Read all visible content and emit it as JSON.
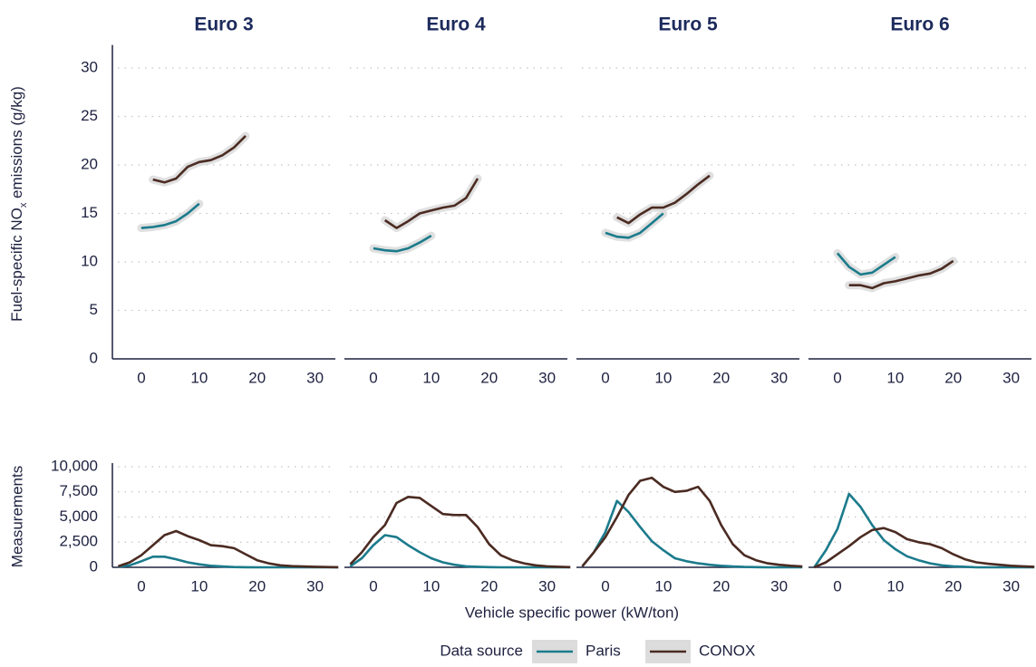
{
  "figure": {
    "ylabel_top": [
      "Fuel-specific NO",
      "x",
      " emissions (g/kg)"
    ],
    "ylabel_bottom": "Measurements",
    "xlabel": "Vehicle specific power (kW/ton)",
    "legend_title": "Data source"
  },
  "chart_data": [
    {
      "type": "line",
      "row": "top",
      "title": "Euro 3",
      "x": [
        0,
        2,
        4,
        6,
        8,
        10,
        12,
        14,
        16,
        18,
        20
      ],
      "xlim": [
        -5,
        33.5
      ],
      "xticks": [
        0,
        10,
        20,
        30
      ],
      "ylim": [
        0,
        32
      ],
      "yticks": [
        0,
        5,
        10,
        15,
        20,
        25,
        30
      ],
      "grid": true,
      "series": [
        {
          "name": "Paris",
          "color": "#1b7b8c",
          "values": [
            13.5,
            13.6,
            13.8,
            14.2,
            15.0,
            16.0,
            null,
            null,
            null,
            null,
            null
          ]
        },
        {
          "name": "CONOX",
          "color": "#4b2b22",
          "values": [
            null,
            18.5,
            18.2,
            18.6,
            19.8,
            20.3,
            20.5,
            21.0,
            21.8,
            23.0,
            null
          ]
        }
      ]
    },
    {
      "type": "line",
      "row": "top",
      "title": "Euro 4",
      "x": [
        0,
        2,
        4,
        6,
        8,
        10,
        12,
        14,
        16,
        18,
        20
      ],
      "xlim": [
        -5,
        33.5
      ],
      "xticks": [
        0,
        10,
        20,
        30
      ],
      "ylim": [
        0,
        32
      ],
      "yticks": [
        0,
        5,
        10,
        15,
        20,
        25,
        30
      ],
      "grid": true,
      "series": [
        {
          "name": "Paris",
          "color": "#1b7b8c",
          "values": [
            11.4,
            11.2,
            11.1,
            11.4,
            12.0,
            12.7,
            null,
            null,
            null,
            null,
            null
          ]
        },
        {
          "name": "CONOX",
          "color": "#4b2b22",
          "values": [
            null,
            14.3,
            13.5,
            14.2,
            15.0,
            15.3,
            15.6,
            15.8,
            16.6,
            18.6,
            null
          ]
        }
      ]
    },
    {
      "type": "line",
      "row": "top",
      "title": "Euro 5",
      "x": [
        0,
        2,
        4,
        6,
        8,
        10,
        12,
        14,
        16,
        18,
        20
      ],
      "xlim": [
        -5,
        33.5
      ],
      "xticks": [
        0,
        10,
        20,
        30
      ],
      "ylim": [
        0,
        32
      ],
      "yticks": [
        0,
        5,
        10,
        15,
        20,
        25,
        30
      ],
      "grid": true,
      "series": [
        {
          "name": "Paris",
          "color": "#1b7b8c",
          "values": [
            13.0,
            12.6,
            12.5,
            13.0,
            14.0,
            15.0,
            null,
            null,
            null,
            null,
            null
          ]
        },
        {
          "name": "CONOX",
          "color": "#4b2b22",
          "values": [
            null,
            14.6,
            14.0,
            14.9,
            15.6,
            15.6,
            16.1,
            17.0,
            18.0,
            18.9,
            null
          ]
        }
      ]
    },
    {
      "type": "line",
      "row": "top",
      "title": "Euro 6",
      "x": [
        0,
        2,
        4,
        6,
        8,
        10,
        12,
        14,
        16,
        18,
        20
      ],
      "xlim": [
        -5,
        33.5
      ],
      "xticks": [
        0,
        10,
        20,
        30
      ],
      "ylim": [
        0,
        32
      ],
      "yticks": [
        0,
        5,
        10,
        15,
        20,
        25,
        30
      ],
      "grid": true,
      "series": [
        {
          "name": "Paris",
          "color": "#1b7b8c",
          "values": [
            10.9,
            9.5,
            8.7,
            8.9,
            9.7,
            10.5,
            null,
            null,
            null,
            null,
            null
          ]
        },
        {
          "name": "CONOX",
          "color": "#4b2b22",
          "values": [
            null,
            7.6,
            7.6,
            7.3,
            7.8,
            8.0,
            8.3,
            8.6,
            8.8,
            9.3,
            10.1
          ]
        }
      ]
    },
    {
      "type": "line",
      "row": "bottom",
      "x": [
        -4,
        -2,
        0,
        2,
        4,
        6,
        8,
        10,
        12,
        14,
        16,
        18,
        20,
        22,
        24,
        26,
        28,
        30,
        32,
        34
      ],
      "xlim": [
        -5,
        33.5
      ],
      "xticks": [
        0,
        10,
        20,
        30
      ],
      "ylim": [
        0,
        10000
      ],
      "yticks": [
        0,
        {
          "value": 2500,
          "label": "2,500"
        },
        {
          "value": 5000,
          "label": "5,000"
        },
        {
          "value": 7500,
          "label": "7,500"
        },
        {
          "value": 10000,
          "label": "10,000"
        }
      ],
      "grid": true,
      "series": [
        {
          "name": "Paris",
          "color": "#1b7b8c",
          "values": [
            50,
            200,
            600,
            1050,
            1050,
            800,
            500,
            300,
            150,
            80,
            30,
            10,
            0,
            0,
            0,
            0,
            0,
            0,
            0,
            0
          ]
        },
        {
          "name": "CONOX",
          "color": "#4b2b22",
          "values": [
            100,
            500,
            1200,
            2200,
            3200,
            3600,
            3100,
            2700,
            2200,
            2100,
            1900,
            1300,
            700,
            400,
            200,
            120,
            80,
            50,
            30,
            10
          ]
        }
      ]
    },
    {
      "type": "line",
      "row": "bottom",
      "x": [
        -4,
        -2,
        0,
        2,
        4,
        6,
        8,
        10,
        12,
        14,
        16,
        18,
        20,
        22,
        24,
        26,
        28,
        30,
        32,
        34
      ],
      "xlim": [
        -5,
        33.5
      ],
      "xticks": [
        0,
        10,
        20,
        30
      ],
      "ylim": [
        0,
        10000
      ],
      "yticks": [
        0,
        {
          "value": 2500,
          "label": "2,500"
        },
        {
          "value": 5000,
          "label": "5,000"
        },
        {
          "value": 7500,
          "label": "7,500"
        },
        {
          "value": 10000,
          "label": "10,000"
        }
      ],
      "grid": true,
      "series": [
        {
          "name": "Paris",
          "color": "#1b7b8c",
          "values": [
            100,
            900,
            2200,
            3200,
            3000,
            2200,
            1500,
            900,
            500,
            250,
            100,
            50,
            20,
            0,
            0,
            0,
            0,
            0,
            0,
            0
          ]
        },
        {
          "name": "CONOX",
          "color": "#4b2b22",
          "values": [
            300,
            1500,
            3000,
            4200,
            6400,
            7000,
            6900,
            6100,
            5300,
            5200,
            5200,
            4000,
            2300,
            1200,
            700,
            400,
            200,
            100,
            50,
            20
          ]
        }
      ]
    },
    {
      "type": "line",
      "row": "bottom",
      "x": [
        -4,
        -2,
        0,
        2,
        4,
        6,
        8,
        10,
        12,
        14,
        16,
        18,
        20,
        22,
        24,
        26,
        28,
        30,
        32,
        34
      ],
      "xlim": [
        -5,
        33.5
      ],
      "xticks": [
        0,
        10,
        20,
        30
      ],
      "ylim": [
        0,
        10000
      ],
      "yticks": [
        0,
        {
          "value": 2500,
          "label": "2,500"
        },
        {
          "value": 5000,
          "label": "5,000"
        },
        {
          "value": 7500,
          "label": "7,500"
        },
        {
          "value": 10000,
          "label": "10,000"
        }
      ],
      "grid": true,
      "series": [
        {
          "name": "Paris",
          "color": "#1b7b8c",
          "values": [
            100,
            1500,
            3500,
            6600,
            5500,
            4000,
            2600,
            1700,
            900,
            600,
            400,
            250,
            150,
            80,
            40,
            20,
            0,
            0,
            0,
            0
          ]
        },
        {
          "name": "CONOX",
          "color": "#4b2b22",
          "values": [
            100,
            1500,
            3000,
            5000,
            7200,
            8600,
            8900,
            8000,
            7500,
            7600,
            8000,
            6600,
            4200,
            2300,
            1200,
            700,
            400,
            250,
            150,
            80
          ]
        }
      ]
    },
    {
      "type": "line",
      "row": "bottom",
      "x": [
        -4,
        -2,
        0,
        2,
        4,
        6,
        8,
        10,
        12,
        14,
        16,
        18,
        20,
        22,
        24,
        26,
        28,
        30,
        32,
        34
      ],
      "xlim": [
        -5,
        33.5
      ],
      "xticks": [
        0,
        10,
        20,
        30
      ],
      "ylim": [
        0,
        10000
      ],
      "yticks": [
        0,
        {
          "value": 2500,
          "label": "2,500"
        },
        {
          "value": 5000,
          "label": "5,000"
        },
        {
          "value": 7500,
          "label": "7,500"
        },
        {
          "value": 10000,
          "label": "10,000"
        }
      ],
      "grid": true,
      "series": [
        {
          "name": "Paris",
          "color": "#1b7b8c",
          "values": [
            0,
            1700,
            3800,
            7300,
            6000,
            4200,
            2700,
            1800,
            1100,
            700,
            400,
            200,
            100,
            50,
            0,
            0,
            0,
            0,
            0,
            0
          ]
        },
        {
          "name": "CONOX",
          "color": "#4b2b22",
          "values": [
            0,
            500,
            1300,
            2100,
            3000,
            3700,
            3900,
            3500,
            2800,
            2500,
            2300,
            1900,
            1300,
            800,
            500,
            350,
            250,
            150,
            100,
            50
          ]
        }
      ]
    }
  ]
}
